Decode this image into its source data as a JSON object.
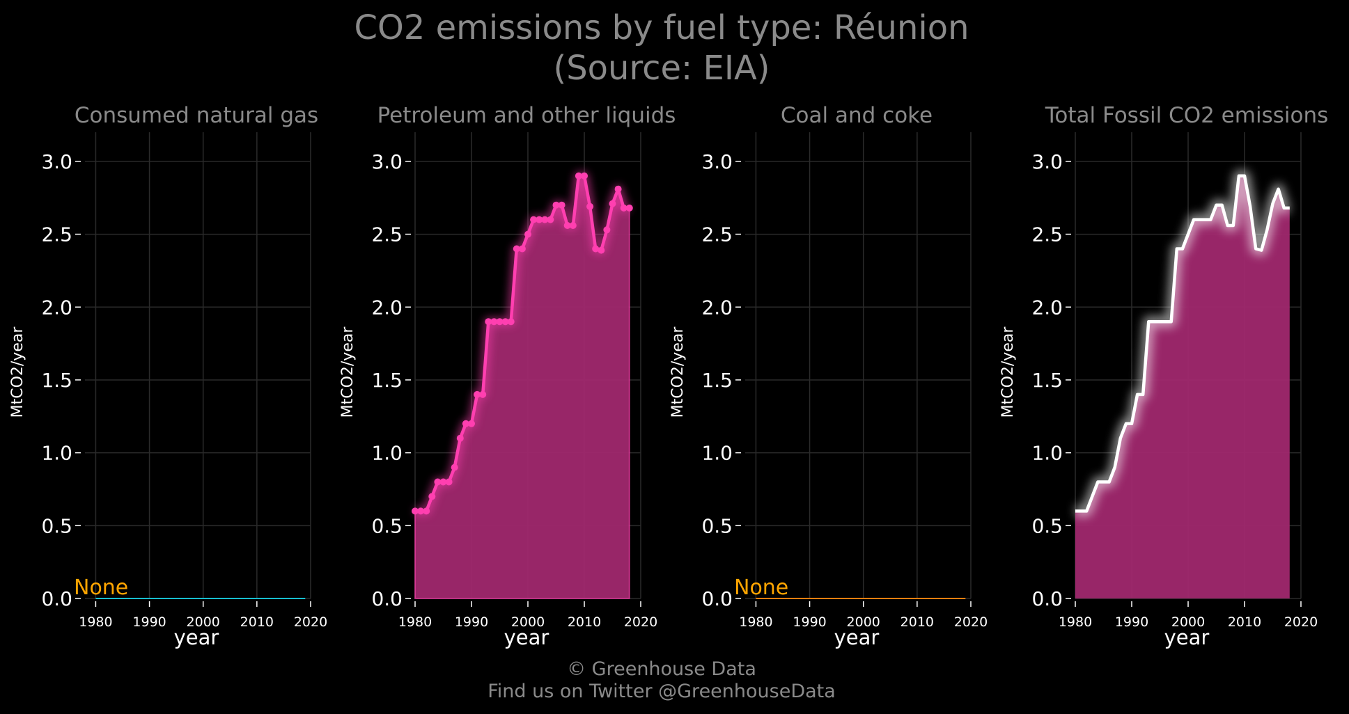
{
  "title": {
    "line1": "CO2 emissions by fuel type: Réunion",
    "line2": "(Source: EIA)"
  },
  "footer": {
    "line1": "© Greenhouse Data",
    "line2": "Find us on Twitter @GreenhouseData"
  },
  "colors": {
    "background": "#000000",
    "grid": "#2a2a2a",
    "title_text": "#8a8a8a",
    "tick_text": "#ffffff",
    "petroleum_line": "#ff3fb0",
    "petroleum_fill": "#a0286e",
    "total_line": "#ffffff",
    "total_fill": "#a0286e",
    "gas_line": "#17becf",
    "coal_line": "#ff7f0e",
    "none_label": "#ffa500"
  },
  "chart_data": [
    {
      "type": "line",
      "title": "Consumed natural gas",
      "xlabel": "year",
      "ylabel": "MtCO2/year",
      "xlim": [
        1978,
        2020
      ],
      "ylim": [
        0,
        3.2
      ],
      "xticks": [
        1980,
        1990,
        2000,
        2010,
        2020
      ],
      "yticks": [
        0.0,
        0.5,
        1.0,
        1.5,
        2.0,
        2.5,
        3.0
      ],
      "grid": true,
      "annotation": "None",
      "series": [
        {
          "x": [
            1980,
            2019
          ],
          "values": [
            0,
            0
          ],
          "color": "#17becf",
          "fill": false,
          "markers": false
        }
      ]
    },
    {
      "type": "area",
      "title": "Petroleum and other liquids",
      "xlabel": "year",
      "ylabel": "MtCO2/year",
      "xlim": [
        1980,
        2020
      ],
      "ylim": [
        0,
        3.2
      ],
      "xticks": [
        1980,
        1990,
        2000,
        2010,
        2020
      ],
      "yticks": [
        0.0,
        0.5,
        1.0,
        1.5,
        2.0,
        2.5,
        3.0
      ],
      "grid": true,
      "series": [
        {
          "x": [
            1980,
            1981,
            1982,
            1983,
            1984,
            1985,
            1986,
            1987,
            1988,
            1989,
            1990,
            1991,
            1992,
            1993,
            1994,
            1995,
            1996,
            1997,
            1998,
            1999,
            2000,
            2001,
            2002,
            2003,
            2004,
            2005,
            2006,
            2007,
            2008,
            2009,
            2010,
            2011,
            2012,
            2013,
            2014,
            2015,
            2016,
            2017,
            2018
          ],
          "values": [
            0.6,
            0.6,
            0.6,
            0.7,
            0.8,
            0.8,
            0.8,
            0.9,
            1.1,
            1.2,
            1.2,
            1.4,
            1.4,
            1.9,
            1.9,
            1.9,
            1.9,
            1.9,
            2.4,
            2.4,
            2.5,
            2.6,
            2.6,
            2.6,
            2.6,
            2.7,
            2.7,
            2.56,
            2.56,
            2.9,
            2.9,
            2.69,
            2.4,
            2.39,
            2.53,
            2.71,
            2.81,
            2.68,
            2.68
          ],
          "color": "#ff3fb0",
          "fill": true,
          "markers": true
        }
      ]
    },
    {
      "type": "line",
      "title": "Coal and coke",
      "xlabel": "year",
      "ylabel": "MtCO2/year",
      "xlim": [
        1978,
        2020
      ],
      "ylim": [
        0,
        3.2
      ],
      "xticks": [
        1980,
        1990,
        2000,
        2010,
        2020
      ],
      "yticks": [
        0.0,
        0.5,
        1.0,
        1.5,
        2.0,
        2.5,
        3.0
      ],
      "grid": true,
      "annotation": "None",
      "series": [
        {
          "x": [
            1980,
            2019
          ],
          "values": [
            0,
            0
          ],
          "color": "#ff7f0e",
          "fill": false,
          "markers": false
        }
      ]
    },
    {
      "type": "area",
      "title": "Total Fossil CO2 emissions",
      "xlabel": "year",
      "ylabel": "MtCO2/year",
      "xlim": [
        1980,
        2020
      ],
      "ylim": [
        0,
        3.2
      ],
      "xticks": [
        1980,
        1990,
        2000,
        2010,
        2020
      ],
      "yticks": [
        0.0,
        0.5,
        1.0,
        1.5,
        2.0,
        2.5,
        3.0
      ],
      "grid": true,
      "series": [
        {
          "x": [
            1980,
            1981,
            1982,
            1983,
            1984,
            1985,
            1986,
            1987,
            1988,
            1989,
            1990,
            1991,
            1992,
            1993,
            1994,
            1995,
            1996,
            1997,
            1998,
            1999,
            2000,
            2001,
            2002,
            2003,
            2004,
            2005,
            2006,
            2007,
            2008,
            2009,
            2010,
            2011,
            2012,
            2013,
            2014,
            2015,
            2016,
            2017,
            2018
          ],
          "values": [
            0.6,
            0.6,
            0.6,
            0.7,
            0.8,
            0.8,
            0.8,
            0.9,
            1.1,
            1.2,
            1.2,
            1.4,
            1.4,
            1.9,
            1.9,
            1.9,
            1.9,
            1.9,
            2.4,
            2.4,
            2.5,
            2.6,
            2.6,
            2.6,
            2.6,
            2.7,
            2.7,
            2.56,
            2.56,
            2.9,
            2.9,
            2.69,
            2.4,
            2.39,
            2.53,
            2.71,
            2.81,
            2.68,
            2.68
          ],
          "color": "#ffffff",
          "fill": true,
          "markers": false
        }
      ]
    }
  ]
}
